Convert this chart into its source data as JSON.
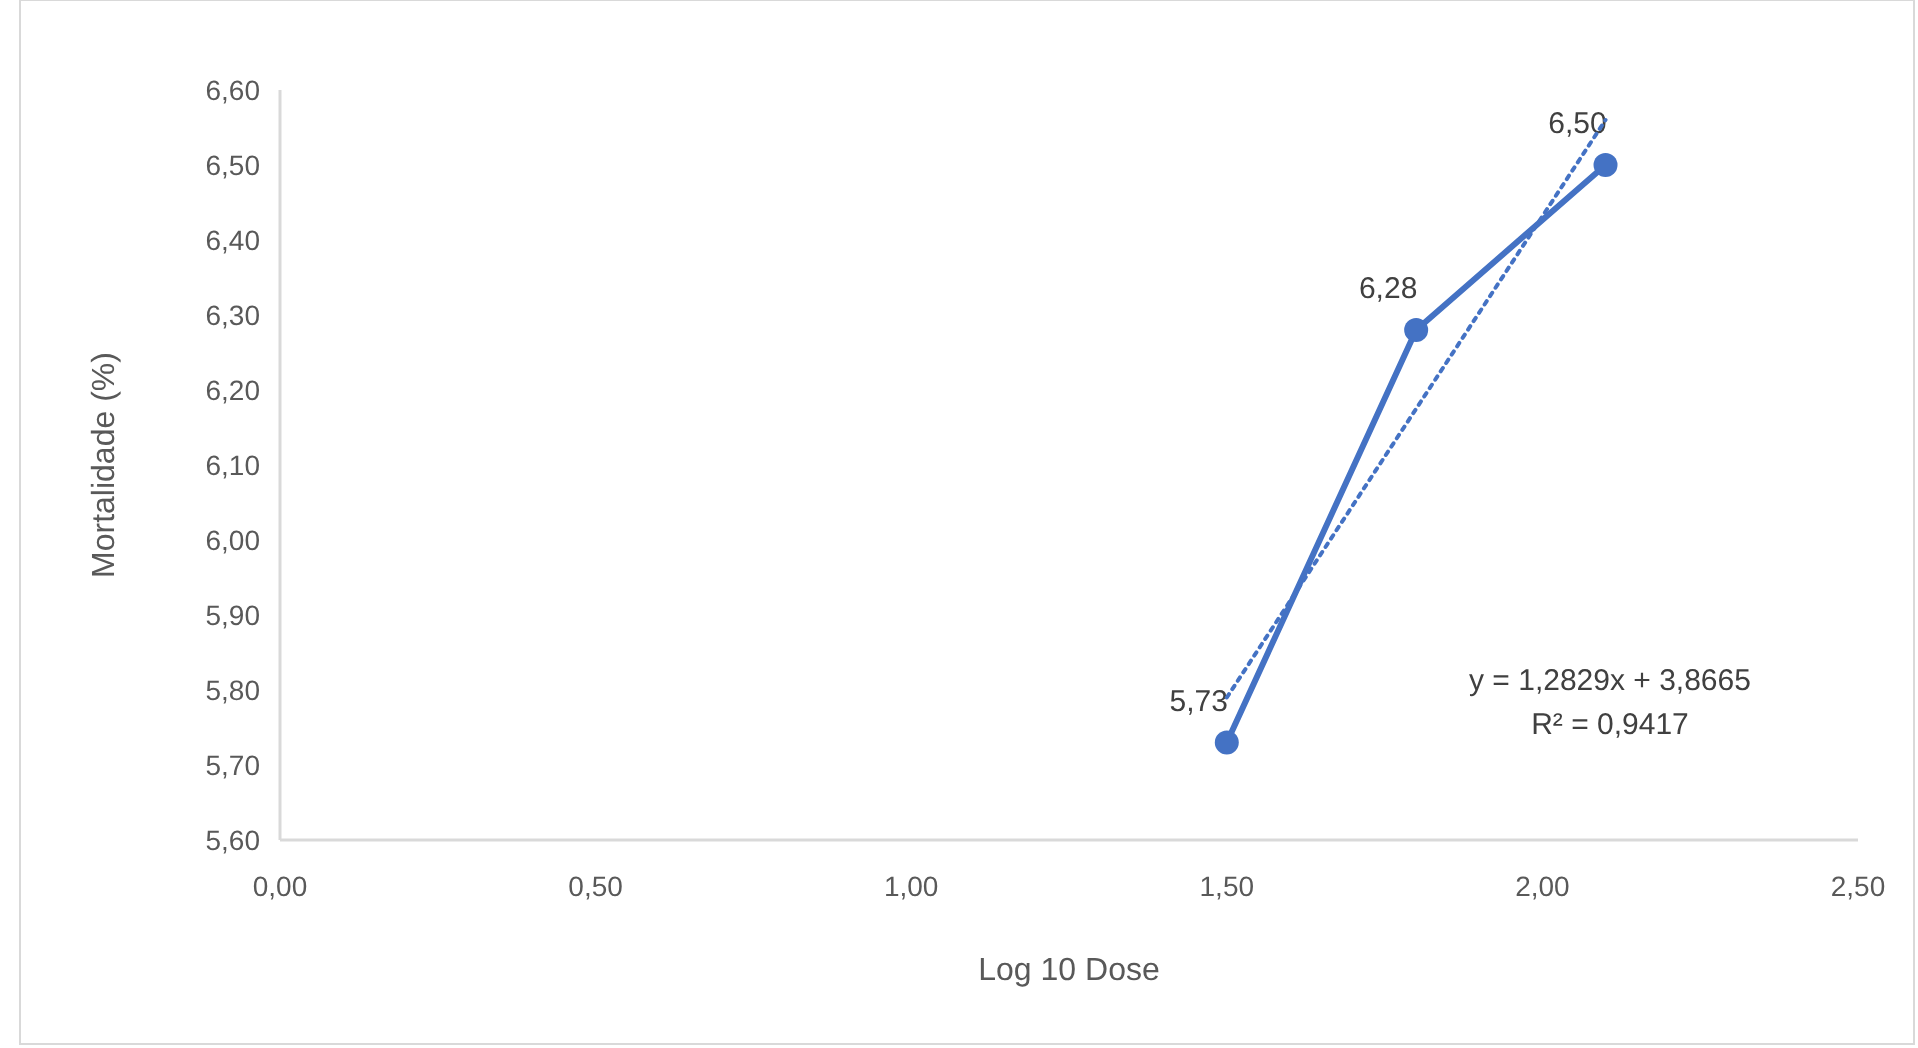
{
  "chart_data": {
    "type": "line",
    "xlabel": "Log 10 Dose",
    "ylabel": "Mortalidade (%)",
    "xlim": [
      0,
      2.5
    ],
    "ylim": [
      5.6,
      6.6
    ],
    "xticks": [
      {
        "value": 0,
        "label": "0,00"
      },
      {
        "value": 0.5,
        "label": "0,50"
      },
      {
        "value": 1,
        "label": "1,00"
      },
      {
        "value": 1.5,
        "label": "1,50"
      },
      {
        "value": 2,
        "label": "2,00"
      },
      {
        "value": 2.5,
        "label": "2,50"
      }
    ],
    "yticks": [
      {
        "value": 5.6,
        "label": "5,60"
      },
      {
        "value": 5.7,
        "label": "5,70"
      },
      {
        "value": 5.8,
        "label": "5,80"
      },
      {
        "value": 5.9,
        "label": "5,90"
      },
      {
        "value": 6,
        "label": "6,00"
      },
      {
        "value": 6.1,
        "label": "6,10"
      },
      {
        "value": 6.2,
        "label": "6,20"
      },
      {
        "value": 6.3,
        "label": "6,30"
      },
      {
        "value": 6.4,
        "label": "6,40"
      },
      {
        "value": 6.5,
        "label": "6,50"
      },
      {
        "value": 6.6,
        "label": "6,60"
      }
    ],
    "grid": false,
    "series": [
      {
        "color": "#4472c4",
        "x": [
          1.5,
          1.8,
          2.1
        ],
        "values": [
          5.73,
          6.28,
          6.5
        ],
        "value_labels": [
          "5,73",
          "6,28",
          "6,50"
        ],
        "marker": "circle",
        "line_style": "solid"
      },
      {
        "color": "#4472c4",
        "x": [
          1.5,
          2.1
        ],
        "values": [
          5.79,
          6.56
        ],
        "marker": "none",
        "line_style": "dotted"
      }
    ],
    "annotations": [
      "y = 1,2829x + 3,8665",
      "R² = 0,9417"
    ]
  }
}
